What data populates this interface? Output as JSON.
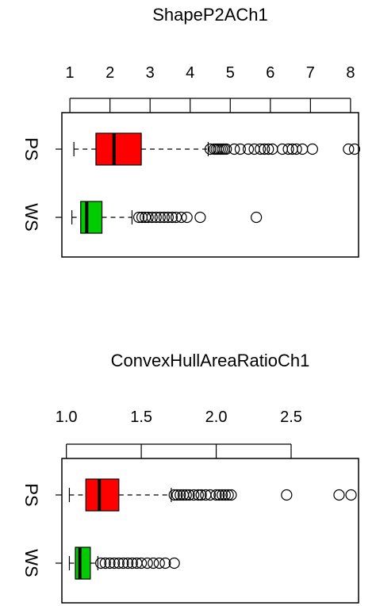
{
  "chart_data": [
    {
      "type": "box",
      "title": "ShapeP2ACh1",
      "xlim": [
        0.8,
        8.2
      ],
      "xticks": [
        1,
        2,
        3,
        4,
        5,
        6,
        7,
        8
      ],
      "categories": [
        "PS",
        "WS"
      ],
      "series": [
        {
          "name": "PS",
          "color": "#ff0000",
          "min": 1.1,
          "q1": 1.65,
          "median": 2.1,
          "q3": 2.78,
          "max": 4.45,
          "outliers": [
            4.5,
            4.6,
            4.65,
            4.7,
            4.75,
            4.8,
            4.85,
            4.9,
            5.1,
            5.25,
            5.45,
            5.6,
            5.75,
            5.85,
            5.95,
            6.05,
            6.3,
            6.45,
            6.55,
            6.65,
            6.8,
            7.05,
            7.95,
            8.1
          ]
        },
        {
          "name": "WS",
          "color": "#00cc00",
          "min": 1.05,
          "q1": 1.27,
          "median": 1.42,
          "q3": 1.8,
          "max": 2.55,
          "outliers": [
            2.72,
            2.8,
            2.88,
            2.95,
            3.05,
            3.15,
            3.25,
            3.35,
            3.45,
            3.55,
            3.65,
            3.78,
            3.92,
            4.25,
            5.65
          ]
        }
      ]
    },
    {
      "type": "box",
      "title": "ConvexHullAreaRatioCh1",
      "xlim": [
        0.97,
        2.95
      ],
      "xticks": [
        "1.0",
        "1.5",
        "2.0",
        "2.5"
      ],
      "categories": [
        "PS",
        "WS"
      ],
      "series": [
        {
          "name": "PS",
          "color": "#ff0000",
          "min": 1.02,
          "q1": 1.13,
          "median": 1.22,
          "q3": 1.35,
          "max": 1.7,
          "outliers": [
            1.72,
            1.74,
            1.76,
            1.78,
            1.8,
            1.82,
            1.85,
            1.88,
            1.9,
            1.93,
            1.96,
            2.0,
            2.02,
            2.04,
            2.06,
            2.08,
            2.1,
            2.47,
            2.82,
            2.9
          ]
        },
        {
          "name": "WS",
          "color": "#00cc00",
          "min": 1.02,
          "q1": 1.06,
          "median": 1.09,
          "q3": 1.16,
          "max": 1.21,
          "outliers": [
            1.23,
            1.26,
            1.29,
            1.32,
            1.35,
            1.38,
            1.41,
            1.44,
            1.47,
            1.5,
            1.54,
            1.58,
            1.62,
            1.66,
            1.72
          ]
        }
      ]
    }
  ]
}
